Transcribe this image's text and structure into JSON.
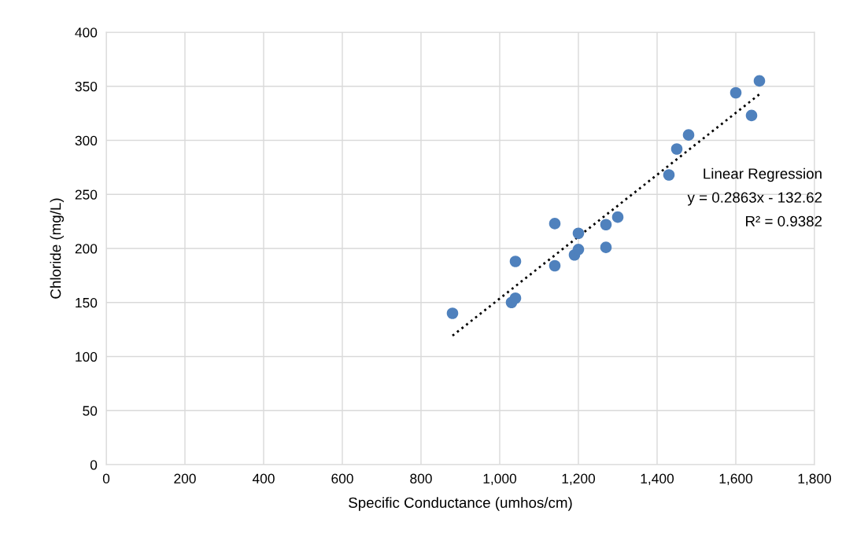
{
  "chart_data": {
    "type": "scatter",
    "xlabel": "Specific Conductance (umhos/cm)",
    "ylabel": "Chloride (mg/L)",
    "xlim": [
      0,
      1800
    ],
    "ylim": [
      0,
      400
    ],
    "xticks": [
      0,
      200,
      400,
      600,
      800,
      {
        "value": 1000,
        "label": "1,000"
      },
      {
        "value": 1200,
        "label": "1,200"
      },
      {
        "value": 1400,
        "label": "1,400"
      },
      {
        "value": 1600,
        "label": "1,600"
      },
      {
        "value": 1800,
        "label": "1,800"
      }
    ],
    "yticks": [
      0,
      50,
      100,
      150,
      200,
      250,
      300,
      350,
      400
    ],
    "grid": true,
    "legend": false,
    "series": [
      {
        "color": "#4f81bd",
        "marker": "circle",
        "x": [
          880,
          1030,
          1040,
          1040,
          1140,
          1140,
          1190,
          1200,
          1200,
          1270,
          1270,
          1300,
          1430,
          1450,
          1480,
          1600,
          1640,
          1660
        ],
        "values": [
          140,
          150,
          154,
          188,
          184,
          223,
          194,
          199,
          214,
          222,
          201,
          229,
          268,
          292,
          305,
          344,
          323,
          355
        ]
      },
      {
        "type": "line",
        "color": "#000000",
        "line_style": "dotted",
        "marker": "none",
        "x": [
          880,
          1660
        ],
        "values": [
          119.3,
          342.6
        ]
      }
    ],
    "annotations": [
      "Linear Regression",
      "y = 0.2863x - 132.62",
      "R² = 0.9382"
    ]
  }
}
